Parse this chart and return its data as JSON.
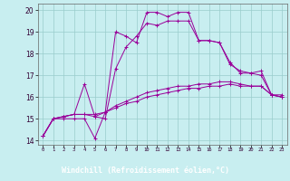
{
  "background_color": "#c8eef0",
  "grid_color": "#99cccc",
  "line_color": "#990099",
  "xlabel": "Windchill (Refroidissement éolien,°C)",
  "xlim": [
    -0.5,
    23.5
  ],
  "ylim": [
    13.8,
    20.3
  ],
  "yticks": [
    14,
    15,
    16,
    17,
    18,
    19,
    20
  ],
  "xticks": [
    0,
    1,
    2,
    3,
    4,
    5,
    6,
    7,
    8,
    9,
    10,
    11,
    12,
    13,
    14,
    15,
    16,
    17,
    18,
    19,
    20,
    21,
    22,
    23
  ],
  "xlabel_bg": "#9966aa",
  "xlabel_color": "#ffffff",
  "series1_x": [
    0,
    1,
    2,
    3,
    4,
    5,
    6,
    7,
    8,
    9,
    10,
    11,
    12,
    13,
    14,
    15,
    16,
    17,
    18,
    19,
    20,
    21,
    22,
    23
  ],
  "series1_y": [
    14.2,
    15.0,
    15.0,
    15.0,
    15.0,
    14.1,
    15.3,
    19.0,
    18.8,
    18.5,
    19.9,
    19.9,
    19.7,
    19.9,
    19.9,
    18.6,
    18.6,
    18.5,
    17.5,
    17.2,
    17.1,
    17.2,
    16.1,
    16.1
  ],
  "series2_x": [
    0,
    1,
    2,
    3,
    4,
    5,
    6,
    7,
    8,
    9,
    10,
    11,
    12,
    13,
    14,
    15,
    16,
    17,
    18,
    19,
    20,
    21,
    22,
    23
  ],
  "series2_y": [
    14.2,
    15.0,
    15.1,
    15.2,
    16.6,
    15.1,
    15.0,
    17.3,
    18.3,
    18.8,
    19.4,
    19.3,
    19.5,
    19.5,
    19.5,
    18.6,
    18.6,
    18.5,
    17.6,
    17.1,
    17.1,
    17.0,
    16.1,
    16.0
  ],
  "series3_x": [
    0,
    1,
    2,
    3,
    4,
    5,
    6,
    7,
    8,
    9,
    10,
    11,
    12,
    13,
    14,
    15,
    16,
    17,
    18,
    19,
    20,
    21,
    22,
    23
  ],
  "series3_y": [
    14.2,
    15.0,
    15.1,
    15.2,
    15.2,
    15.1,
    15.3,
    15.5,
    15.7,
    15.8,
    16.0,
    16.1,
    16.2,
    16.3,
    16.4,
    16.4,
    16.5,
    16.5,
    16.6,
    16.5,
    16.5,
    16.5,
    16.1,
    16.0
  ],
  "series4_x": [
    0,
    1,
    2,
    3,
    4,
    5,
    6,
    7,
    8,
    9,
    10,
    11,
    12,
    13,
    14,
    15,
    16,
    17,
    18,
    19,
    20,
    21,
    22,
    23
  ],
  "series4_y": [
    14.2,
    15.0,
    15.1,
    15.2,
    15.2,
    15.2,
    15.3,
    15.6,
    15.8,
    16.0,
    16.2,
    16.3,
    16.4,
    16.5,
    16.5,
    16.6,
    16.6,
    16.7,
    16.7,
    16.6,
    16.5,
    16.5,
    16.1,
    16.0
  ]
}
